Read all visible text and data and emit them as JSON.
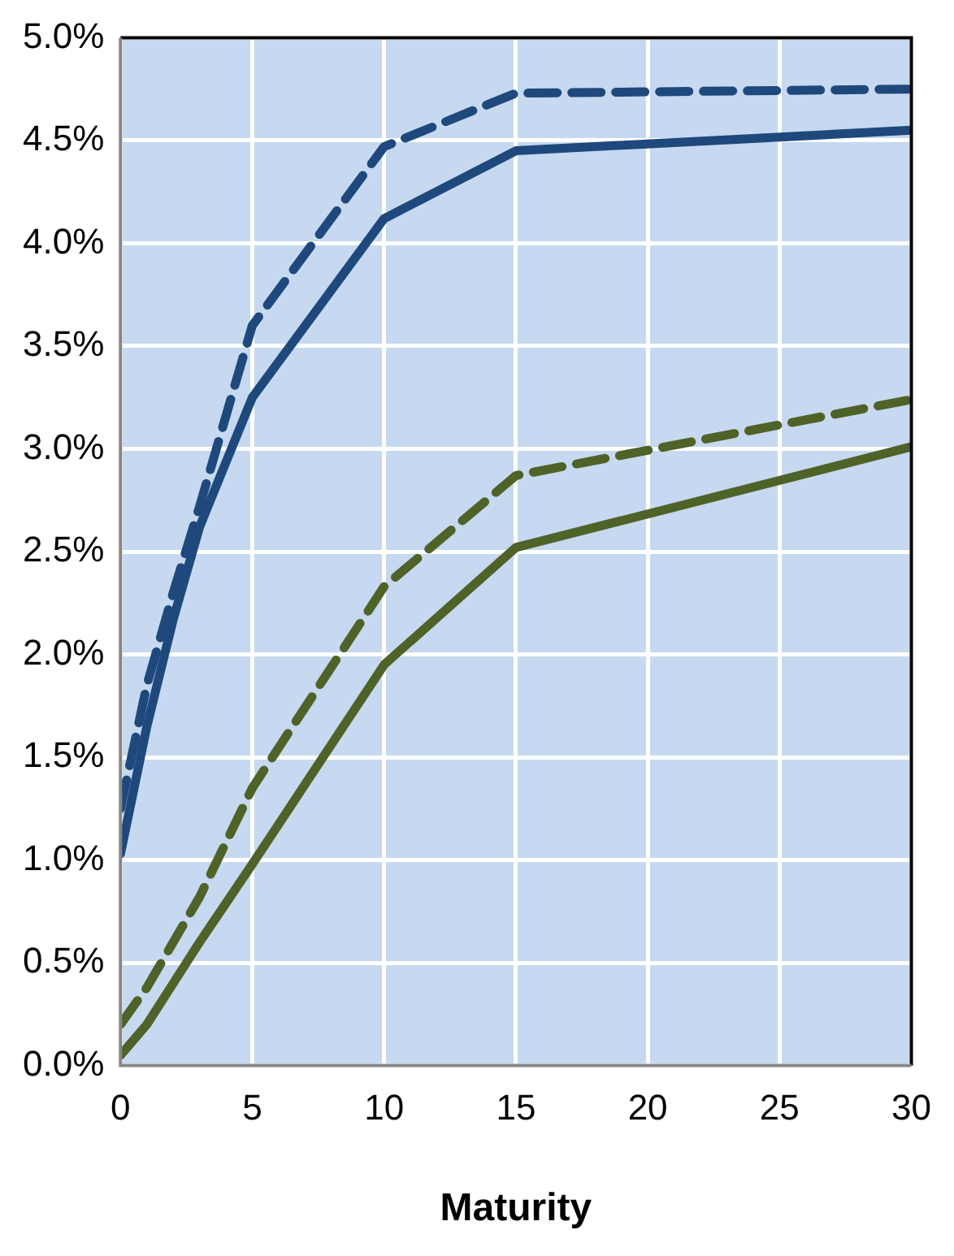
{
  "chart_data": {
    "type": "line",
    "xlabel": "Maturity",
    "x": [
      0,
      1,
      2,
      3,
      5,
      10,
      15,
      30
    ],
    "series": [
      {
        "color": "#1f497d",
        "line_style": "solid",
        "values": [
          1.03,
          1.65,
          2.17,
          2.62,
          3.25,
          4.12,
          4.45,
          4.55
        ]
      },
      {
        "color": "#1f497d",
        "line_style": "dashed",
        "values": [
          1.25,
          1.85,
          2.3,
          2.72,
          3.6,
          4.47,
          4.73,
          4.75
        ]
      },
      {
        "color": "#4f6228",
        "line_style": "solid",
        "values": [
          0.05,
          0.2,
          0.4,
          0.6,
          0.98,
          1.95,
          2.52,
          3.01
        ]
      },
      {
        "color": "#4f6228",
        "line_style": "dashed",
        "values": [
          0.2,
          0.38,
          0.6,
          0.82,
          1.35,
          2.33,
          2.87,
          3.24
        ]
      }
    ],
    "xlim": [
      0,
      30
    ],
    "xticks": [
      0,
      5,
      10,
      15,
      20,
      25,
      30
    ],
    "ylim": [
      0,
      5
    ],
    "yticks": [
      {
        "value": 0,
        "label": "0.0%"
      },
      {
        "value": 0.5,
        "label": "0.5%"
      },
      {
        "value": 1,
        "label": "1.0%"
      },
      {
        "value": 1.5,
        "label": "1.5%"
      },
      {
        "value": 2,
        "label": "2.0%"
      },
      {
        "value": 2.5,
        "label": "2.5%"
      },
      {
        "value": 3,
        "label": "3.0%"
      },
      {
        "value": 3.5,
        "label": "3.5%"
      },
      {
        "value": 4,
        "label": "4.0%"
      },
      {
        "value": 4.5,
        "label": "4.5%"
      },
      {
        "value": 5,
        "label": "5.0%"
      }
    ],
    "grid": true,
    "marker": "none",
    "legend": false
  }
}
